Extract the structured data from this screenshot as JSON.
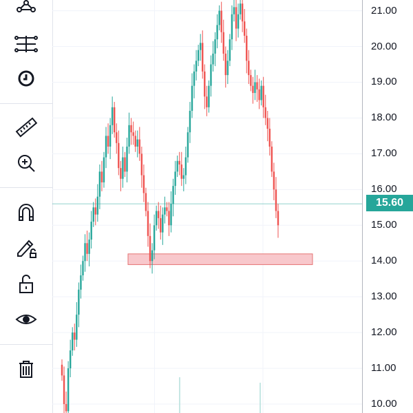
{
  "toolbar": {
    "tools": [
      {
        "name": "pattern-tool",
        "icon": "pattern-icon"
      },
      {
        "name": "forecasting-tool",
        "icon": "forecast-icon"
      },
      {
        "name": "clock-tool",
        "icon": "clock-icon"
      },
      {
        "name": "ruler-tool",
        "icon": "ruler-icon"
      },
      {
        "name": "zoom-tool",
        "icon": "zoom-in-icon"
      },
      {
        "name": "magnet-tool",
        "icon": "magnet-icon"
      },
      {
        "name": "lock-drawing-tool",
        "icon": "pencil-lock-icon"
      },
      {
        "name": "lock-all-tool",
        "icon": "unlock-icon"
      },
      {
        "name": "visibility-tool",
        "icon": "eye-icon"
      },
      {
        "name": "remove-tool",
        "icon": "trash-icon"
      }
    ]
  },
  "price_scale": {
    "labels": [
      "21.00",
      "20.00",
      "19.00",
      "18.00",
      "17.00",
      "16.00",
      "15.00",
      "14.00",
      "13.00",
      "12.00",
      "11.00",
      "10.00"
    ],
    "current_price": "15.60"
  },
  "colors": {
    "up": "#26a69a",
    "down": "#ef5350",
    "accent": "#26a69a",
    "zone_fill": "#f8c8cc",
    "zone_border": "#e57373"
  },
  "chart_data": {
    "type": "candlestick",
    "ylim": [
      9.75,
      21.3
    ],
    "y_ticks": [
      10,
      11,
      12,
      13,
      14,
      15,
      16,
      17,
      18,
      19,
      20,
      21
    ],
    "current_price": 15.6,
    "support_zone": {
      "low": 13.9,
      "high": 14.2
    },
    "closes": [
      10.8,
      10.0,
      9.8,
      11.0,
      11.5,
      12.0,
      11.8,
      12.5,
      13.2,
      13.6,
      14.0,
      14.5,
      14.2,
      14.6,
      15.1,
      15.5,
      15.3,
      15.8,
      16.5,
      16.2,
      16.9,
      17.5,
      17.2,
      17.8,
      18.3,
      17.6,
      17.3,
      16.6,
      16.3,
      16.9,
      16.5,
      17.2,
      17.8,
      17.6,
      17.5,
      17.2,
      17.4,
      17.0,
      16.4,
      15.9,
      15.4,
      14.7,
      14.0,
      14.3,
      15.0,
      15.4,
      15.2,
      14.8,
      15.3,
      15.5,
      15.4,
      15.0,
      15.6,
      16.1,
      16.5,
      16.8,
      16.7,
      16.3,
      16.4,
      16.9,
      17.6,
      18.2,
      18.9,
      19.3,
      19.6,
      19.9,
      20.1,
      19.3,
      18.6,
      18.3,
      18.9,
      19.5,
      19.8,
      20.2,
      20.6,
      21.0,
      20.4,
      19.8,
      19.2,
      19.6,
      20.2,
      20.9,
      21.1,
      20.5,
      20.9,
      21.2,
      20.7,
      20.3,
      19.6,
      19.2,
      18.9,
      18.7,
      19.0,
      18.8,
      18.5,
      18.9,
      18.3,
      18.0,
      17.7,
      17.2,
      16.5,
      16.0,
      15.4,
      15.0
    ]
  }
}
